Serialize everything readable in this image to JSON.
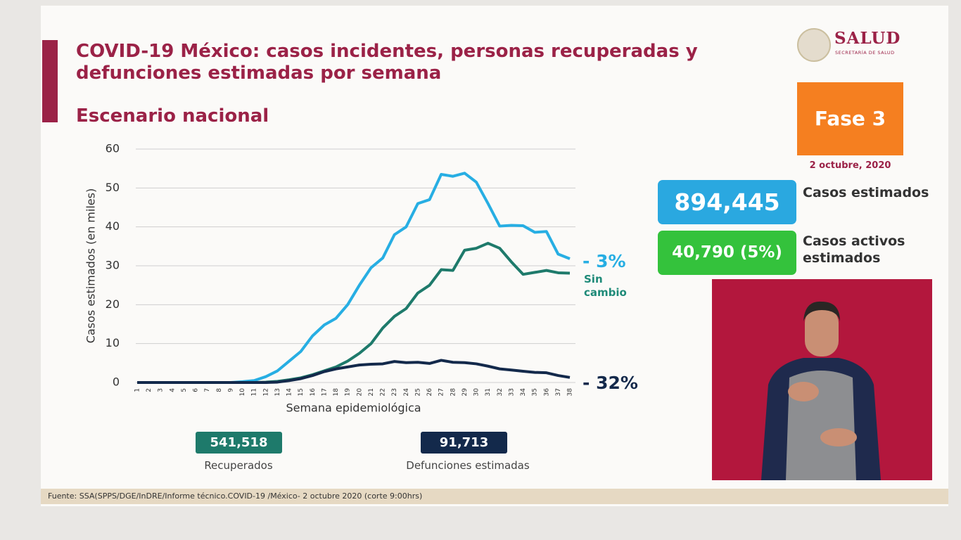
{
  "header": {
    "title": "COVID-19 México: casos incidentes, personas recuperadas y defunciones estimadas por semana",
    "subtitle": "Escenario nacional",
    "logo_name": "SALUD",
    "logo_subtitle": "SECRETARÍA DE SALUD"
  },
  "panel": {
    "phase": "Fase 3",
    "date": "2 octubre, 2020",
    "kpis": [
      {
        "value": "894,445",
        "label": "Casos estimados"
      },
      {
        "value": "40,790 (5%)",
        "label": "Casos activos estimados"
      }
    ]
  },
  "footer": "Fuente: SSA(SPPS/DGE/InDRE/Informe técnico.COVID-19 /México- 2 octubre 2020 (corte 9:00hrs)",
  "chart_data": {
    "type": "line",
    "x_label": "Semana epidemiológica",
    "y_label": "Casos estimados (en miles)",
    "x": [
      1,
      2,
      3,
      4,
      5,
      6,
      7,
      8,
      9,
      10,
      11,
      12,
      13,
      14,
      15,
      16,
      17,
      18,
      19,
      20,
      21,
      22,
      23,
      24,
      25,
      26,
      27,
      28,
      29,
      30,
      31,
      32,
      33,
      34,
      35,
      36,
      37,
      38
    ],
    "xlim": [
      1,
      38
    ],
    "ylim": [
      0,
      60
    ],
    "yticks": [
      0,
      10,
      20,
      30,
      40,
      50,
      60
    ],
    "grid": true,
    "series": [
      {
        "color": "#27aee3",
        "change": "- 3%",
        "values": [
          0,
          0,
          0,
          0,
          0,
          0,
          0,
          0,
          0,
          0.2,
          0.5,
          1.5,
          3,
          5.5,
          8,
          12,
          14.8,
          16.5,
          20,
          25,
          29.5,
          32,
          38,
          40,
          46,
          47,
          53.5,
          53,
          53.8,
          51.5,
          46,
          40.2,
          40.4,
          40.3,
          38.6,
          38.8,
          33,
          31.8
        ]
      },
      {
        "name": "Recuperados",
        "color": "#1e7a6b",
        "change": "Sin cambio",
        "total": "541,518",
        "values": [
          0,
          0,
          0,
          0,
          0,
          0,
          0,
          0,
          0,
          0,
          0,
          0.1,
          0.3,
          0.7,
          1.2,
          2,
          3,
          4,
          5.5,
          7.5,
          10,
          14,
          17,
          19,
          23,
          25,
          29,
          28.8,
          34,
          34.5,
          35.8,
          34.5,
          31,
          27.8,
          28.3,
          28.8,
          28.2,
          28.1
        ]
      },
      {
        "name": "Defunciones estimadas",
        "color": "#13294b",
        "change": "- 32%",
        "total": "91,713",
        "values": [
          0,
          0,
          0,
          0,
          0,
          0,
          0,
          0,
          0,
          0,
          0,
          0,
          0.1,
          0.5,
          1,
          1.8,
          2.8,
          3.5,
          4,
          4.5,
          4.7,
          4.8,
          5.4,
          5.1,
          5.2,
          4.9,
          5.7,
          5.2,
          5.1,
          4.8,
          4.2,
          3.5,
          3.2,
          2.9,
          2.6,
          2.5,
          1.8,
          1.3
        ]
      }
    ]
  }
}
